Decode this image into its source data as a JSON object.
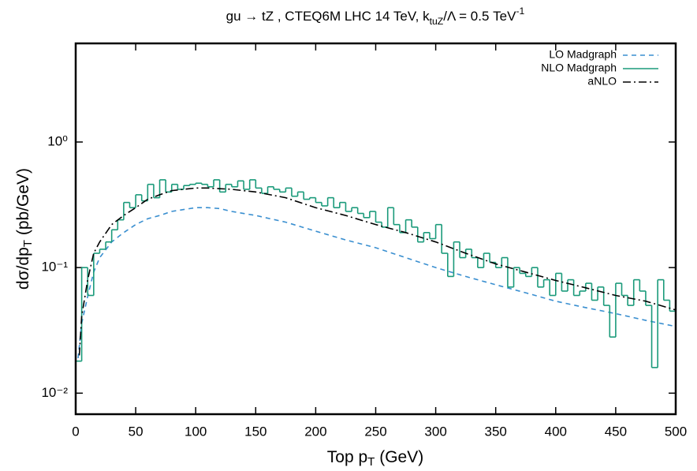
{
  "chart_data": {
    "type": "line",
    "title": "gu → tZ , CTEQ6M LHC 14 TeV, k_{tuZ}/Λ  = 0.5 TeV^{-1}",
    "x_label": "Top  p_{T}  (GeV)",
    "y_label": "dσ/dp_{T}  (pb/GeV)",
    "xlim": [
      0,
      500
    ],
    "xticks": [
      0,
      50,
      100,
      150,
      200,
      250,
      300,
      350,
      400,
      450,
      500
    ],
    "ylim": [
      0.0068,
      6.1
    ],
    "log_y": true,
    "yticks": [
      {
        "value": 0.01,
        "label": "10⁻²"
      },
      {
        "value": 0.1,
        "label": "10⁻¹"
      },
      {
        "value": 1,
        "label": "10⁰"
      }
    ],
    "legend": "upper right",
    "series": [
      {
        "name": "LO Madgraph",
        "color": "#3a8fd0",
        "dash": "dashed",
        "x": [
          2,
          5,
          10,
          15,
          20,
          30,
          40,
          50,
          60,
          70,
          80,
          90,
          100,
          110,
          120,
          130,
          150,
          175,
          200,
          225,
          250,
          275,
          300,
          325,
          350,
          375,
          400,
          425,
          450,
          475,
          500
        ],
        "values": [
          0.019,
          0.036,
          0.059,
          0.092,
          0.12,
          0.16,
          0.19,
          0.22,
          0.245,
          0.26,
          0.28,
          0.29,
          0.3,
          0.3,
          0.295,
          0.28,
          0.26,
          0.23,
          0.195,
          0.166,
          0.144,
          0.12,
          0.1,
          0.085,
          0.073,
          0.063,
          0.054,
          0.048,
          0.043,
          0.038,
          0.034
        ]
      },
      {
        "name": "NLO Madgraph",
        "color": "#1a9a7a",
        "dash": "solid",
        "style": "step",
        "bins": [
          0,
          5,
          10,
          15,
          20,
          25,
          30,
          35,
          40,
          45,
          50,
          55,
          60,
          65,
          70,
          75,
          80,
          85,
          90,
          95,
          100,
          105,
          110,
          115,
          120,
          125,
          130,
          135,
          140,
          145,
          150,
          155,
          160,
          165,
          170,
          175,
          180,
          185,
          190,
          195,
          200,
          205,
          210,
          215,
          220,
          225,
          230,
          235,
          240,
          245,
          250,
          255,
          260,
          265,
          270,
          275,
          280,
          285,
          290,
          295,
          300,
          305,
          310,
          315,
          320,
          325,
          330,
          335,
          340,
          345,
          350,
          355,
          360,
          365,
          370,
          375,
          380,
          385,
          390,
          395,
          400,
          405,
          410,
          415,
          420,
          425,
          430,
          435,
          440,
          445,
          450,
          455,
          460,
          465,
          470,
          475,
          480,
          485,
          490,
          495,
          500
        ],
        "values": [
          0.018,
          0.1,
          0.06,
          0.13,
          0.14,
          0.16,
          0.2,
          0.24,
          0.33,
          0.3,
          0.38,
          0.34,
          0.46,
          0.36,
          0.5,
          0.4,
          0.46,
          0.42,
          0.45,
          0.46,
          0.47,
          0.46,
          0.44,
          0.5,
          0.4,
          0.46,
          0.44,
          0.49,
          0.42,
          0.5,
          0.43,
          0.39,
          0.44,
          0.42,
          0.4,
          0.43,
          0.37,
          0.4,
          0.35,
          0.36,
          0.33,
          0.31,
          0.36,
          0.3,
          0.33,
          0.28,
          0.3,
          0.27,
          0.25,
          0.28,
          0.23,
          0.21,
          0.3,
          0.22,
          0.19,
          0.24,
          0.21,
          0.16,
          0.19,
          0.17,
          0.22,
          0.13,
          0.085,
          0.16,
          0.12,
          0.14,
          0.12,
          0.1,
          0.13,
          0.11,
          0.1,
          0.12,
          0.07,
          0.1,
          0.09,
          0.085,
          0.1,
          0.07,
          0.08,
          0.06,
          0.09,
          0.065,
          0.08,
          0.06,
          0.065,
          0.075,
          0.055,
          0.07,
          0.05,
          0.028,
          0.075,
          0.06,
          0.05,
          0.08,
          0.065,
          0.05,
          0.016,
          0.08,
          0.055,
          0.045
        ]
      },
      {
        "name": "aNLO",
        "color": "#000000",
        "dash": "dashdot",
        "x": [
          3,
          5,
          10,
          15,
          20,
          30,
          40,
          50,
          60,
          70,
          80,
          90,
          100,
          110,
          120,
          130,
          150,
          175,
          200,
          225,
          250,
          275,
          300,
          325,
          350,
          375,
          400,
          425,
          450,
          475,
          500
        ],
        "values": [
          0.02,
          0.041,
          0.08,
          0.13,
          0.16,
          0.22,
          0.26,
          0.3,
          0.35,
          0.38,
          0.41,
          0.42,
          0.43,
          0.43,
          0.425,
          0.42,
          0.4,
          0.36,
          0.3,
          0.26,
          0.22,
          0.19,
          0.16,
          0.13,
          0.107,
          0.092,
          0.079,
          0.069,
          0.06,
          0.054,
          0.046
        ]
      }
    ]
  }
}
